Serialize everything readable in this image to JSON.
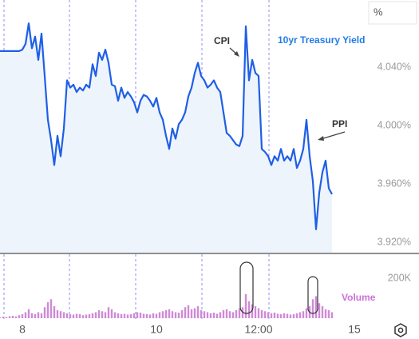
{
  "chart_data": [
    {
      "type": "line",
      "title": "10yr Treasury Yield",
      "y_unit": "%",
      "color": "#1f5fe6",
      "fill": "#eef4fc",
      "annotations": [
        {
          "text": "CPI"
        },
        {
          "text": "PPI"
        }
      ],
      "x": [
        0,
        1,
        2,
        3,
        4,
        5,
        6,
        7,
        8,
        9,
        10,
        11,
        12,
        13,
        14,
        15,
        16,
        17,
        18,
        19,
        20,
        21,
        22,
        23,
        24,
        25,
        26,
        27,
        28,
        29,
        30,
        31,
        32,
        33,
        34,
        35,
        36,
        37,
        38,
        39,
        40,
        41,
        42,
        43,
        44,
        45,
        46,
        47,
        48,
        49,
        50,
        51,
        52,
        53,
        54,
        55,
        56,
        57,
        58,
        59,
        60,
        61,
        62,
        63,
        64,
        65,
        66,
        67,
        68,
        69,
        70,
        71,
        72,
        73,
        74,
        75,
        76,
        77,
        78,
        79,
        80,
        81,
        82,
        83,
        84,
        85,
        86,
        87,
        88,
        89,
        90,
        91,
        92,
        93,
        94,
        95,
        96,
        97,
        98,
        99,
        100,
        101,
        102,
        103,
        104
      ],
      "values": [
        4.051,
        4.051,
        4.051,
        4.051,
        4.051,
        4.051,
        4.051,
        4.052,
        4.056,
        4.07,
        4.053,
        4.061,
        4.045,
        4.063,
        4.034,
        4.004,
        3.99,
        3.973,
        3.993,
        3.979,
        3.998,
        4.031,
        4.026,
        4.028,
        4.023,
        4.026,
        4.024,
        4.028,
        4.026,
        4.042,
        4.034,
        4.05,
        4.045,
        4.052,
        4.043,
        4.028,
        4.027,
        4.017,
        4.026,
        4.019,
        4.023,
        4.02,
        4.016,
        4.009,
        4.017,
        4.021,
        4.02,
        4.017,
        4.013,
        4.019,
        4.009,
        4.004,
        3.993,
        3.984,
        3.998,
        3.991,
        4.001,
        4.004,
        4.009,
        4.02,
        4.026,
        4.036,
        4.043,
        4.034,
        4.031,
        4.026,
        4.028,
        4.031,
        4.026,
        4.023,
        4.009,
        3.995,
        3.993,
        3.99,
        3.987,
        3.986,
        3.993,
        4.068,
        4.031,
        4.045,
        4.036,
        4.034,
        3.984,
        3.982,
        3.979,
        3.973,
        3.979,
        3.976,
        3.984,
        3.976,
        3.979,
        3.976,
        3.984,
        3.971,
        3.976,
        3.984,
        4.004,
        3.979,
        3.962,
        3.929,
        3.954,
        3.968,
        3.976,
        3.957,
        3.953
      ],
      "xlim": [
        0,
        114
      ],
      "xticks": [
        {
          "value": 7,
          "label": "8"
        },
        {
          "value": 49,
          "label": "10"
        },
        {
          "value": 81,
          "label": "12:00"
        },
        {
          "value": 111,
          "label": "15"
        }
      ],
      "ylim": [
        3.913,
        4.086
      ],
      "yticks": [
        {
          "value": 3.92,
          "label": "3.920%"
        },
        {
          "value": 3.96,
          "label": "3.960%"
        },
        {
          "value": 4.0,
          "label": "4.000%"
        },
        {
          "value": 4.04,
          "label": "4.040%"
        }
      ]
    },
    {
      "type": "bar",
      "title": "Volume",
      "color": "#cf8ad6",
      "x": [
        0,
        1,
        2,
        3,
        4,
        5,
        6,
        7,
        8,
        9,
        10,
        11,
        12,
        13,
        14,
        15,
        16,
        17,
        18,
        19,
        20,
        21,
        22,
        23,
        24,
        25,
        26,
        27,
        28,
        29,
        30,
        31,
        32,
        33,
        34,
        35,
        36,
        37,
        38,
        39,
        40,
        41,
        42,
        43,
        44,
        45,
        46,
        47,
        48,
        49,
        50,
        51,
        52,
        53,
        54,
        55,
        56,
        57,
        58,
        59,
        60,
        61,
        62,
        63,
        64,
        65,
        66,
        67,
        68,
        69,
        70,
        71,
        72,
        73,
        74,
        75,
        76,
        77,
        78,
        79,
        80,
        81,
        82,
        83,
        84,
        85,
        86,
        87,
        88,
        89,
        90,
        91,
        92,
        93,
        94,
        95,
        96,
        97,
        98,
        99,
        100,
        101,
        102,
        103,
        104
      ],
      "values": [
        5000,
        8000,
        6000,
        10000,
        12000,
        9000,
        15000,
        20000,
        30000,
        45000,
        25000,
        20000,
        30000,
        25000,
        55000,
        80000,
        95000,
        60000,
        40000,
        35000,
        30000,
        25000,
        20000,
        18000,
        22000,
        20000,
        15000,
        18000,
        20000,
        25000,
        30000,
        40000,
        35000,
        30000,
        55000,
        45000,
        30000,
        25000,
        20000,
        22000,
        18000,
        20000,
        25000,
        30000,
        28000,
        22000,
        20000,
        18000,
        25000,
        22000,
        30000,
        35000,
        40000,
        45000,
        35000,
        30000,
        28000,
        40000,
        55000,
        65000,
        45000,
        50000,
        60000,
        40000,
        35000,
        30000,
        25000,
        28000,
        22000,
        30000,
        40000,
        45000,
        35000,
        30000,
        40000,
        50000,
        55000,
        120000,
        85000,
        70000,
        60000,
        50000,
        40000,
        35000,
        30000,
        25000,
        28000,
        22000,
        20000,
        25000,
        22000,
        18000,
        20000,
        25000,
        30000,
        35000,
        50000,
        60000,
        95000,
        110000,
        75000,
        60000,
        45000,
        40000,
        30000
      ],
      "ylim": [
        0,
        320000
      ],
      "yticks": [
        {
          "value": 200000,
          "label": "200K"
        }
      ]
    }
  ]
}
